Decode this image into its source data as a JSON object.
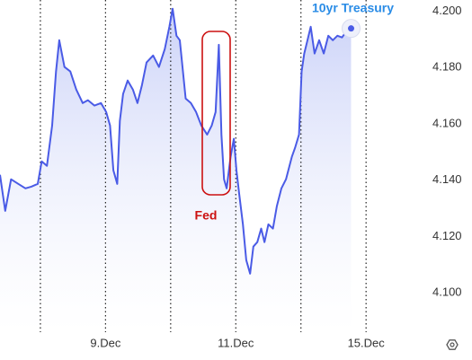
{
  "chart_data": {
    "type": "line",
    "x": [
      -0.62,
      -0.54,
      -0.45,
      -0.34,
      -0.23,
      -0.14,
      -0.04,
      0.02,
      0.1,
      0.18,
      0.24,
      0.29,
      0.37,
      0.46,
      0.55,
      0.65,
      0.73,
      0.83,
      0.93,
      1.01,
      1.07,
      1.12,
      1.18,
      1.22,
      1.27,
      1.34,
      1.42,
      1.49,
      1.56,
      1.63,
      1.73,
      1.82,
      1.91,
      1.98,
      2.03,
      2.09,
      2.14,
      2.23,
      2.31,
      2.39,
      2.47,
      2.56,
      2.63,
      2.69,
      2.74,
      2.78,
      2.82,
      2.86,
      2.92,
      2.97,
      3.01,
      3.05,
      3.11,
      3.16,
      3.22,
      3.27,
      3.33,
      3.39,
      3.44,
      3.5,
      3.57,
      3.63,
      3.7,
      3.77,
      3.86,
      3.91,
      3.97,
      4.01,
      4.05,
      4.1,
      4.15,
      4.21,
      4.28,
      4.35,
      4.42,
      4.49,
      4.56,
      4.63,
      4.7,
      4.77
    ],
    "series": [
      {
        "name": "10yr Treasury",
        "color": "#4a5be6",
        "label_color": "#2a8ce6",
        "values": [
          4.1419,
          4.1291,
          4.1403,
          4.1387,
          4.1371,
          4.1377,
          4.1387,
          4.1467,
          4.1451,
          4.1594,
          4.1786,
          4.1897,
          4.1802,
          4.1786,
          4.1722,
          4.1674,
          4.1684,
          4.1665,
          4.1674,
          4.1642,
          4.1594,
          4.1435,
          4.1387,
          4.161,
          4.1706,
          4.1754,
          4.1722,
          4.1674,
          4.1738,
          4.1818,
          4.1843,
          4.1802,
          4.1866,
          4.1945,
          4.2009,
          4.1913,
          4.1897,
          4.169,
          4.1674,
          4.1642,
          4.1594,
          4.1562,
          4.1594,
          4.1642,
          4.1881,
          4.1562,
          4.1403,
          4.1371,
          4.1483,
          4.1547,
          4.1435,
          4.1355,
          4.1243,
          4.1116,
          4.1068,
          4.1164,
          4.118,
          4.1228,
          4.118,
          4.1243,
          4.1228,
          4.1307,
          4.1371,
          4.1403,
          4.1483,
          4.1515,
          4.1562,
          4.1786,
          4.185,
          4.1897,
          4.1945,
          4.185,
          4.1897,
          4.185,
          4.1913,
          4.1897,
          4.1913,
          4.1907,
          4.1929,
          4.1939
        ]
      }
    ],
    "xlim": [
      -0.62,
      5.66
    ],
    "ylim": [
      4.086,
      4.204
    ],
    "yticks": [
      {
        "value": 4.1,
        "label": "4.100"
      },
      {
        "value": 4.12,
        "label": "4.120"
      },
      {
        "value": 4.14,
        "label": "4.140"
      },
      {
        "value": 4.16,
        "label": "4.160"
      },
      {
        "value": 4.18,
        "label": "4.180"
      },
      {
        "value": 4.2,
        "label": "4.200"
      }
    ],
    "xticks": [
      {
        "value": 1,
        "label": "9.Dec"
      },
      {
        "value": 3,
        "label": "11.Dec"
      },
      {
        "value": 5,
        "label": "15.Dec"
      }
    ],
    "xgrid": [
      0,
      1,
      2,
      3,
      4,
      5
    ],
    "annotations": [
      {
        "text": "Fed",
        "color": "#cc1111"
      }
    ]
  }
}
